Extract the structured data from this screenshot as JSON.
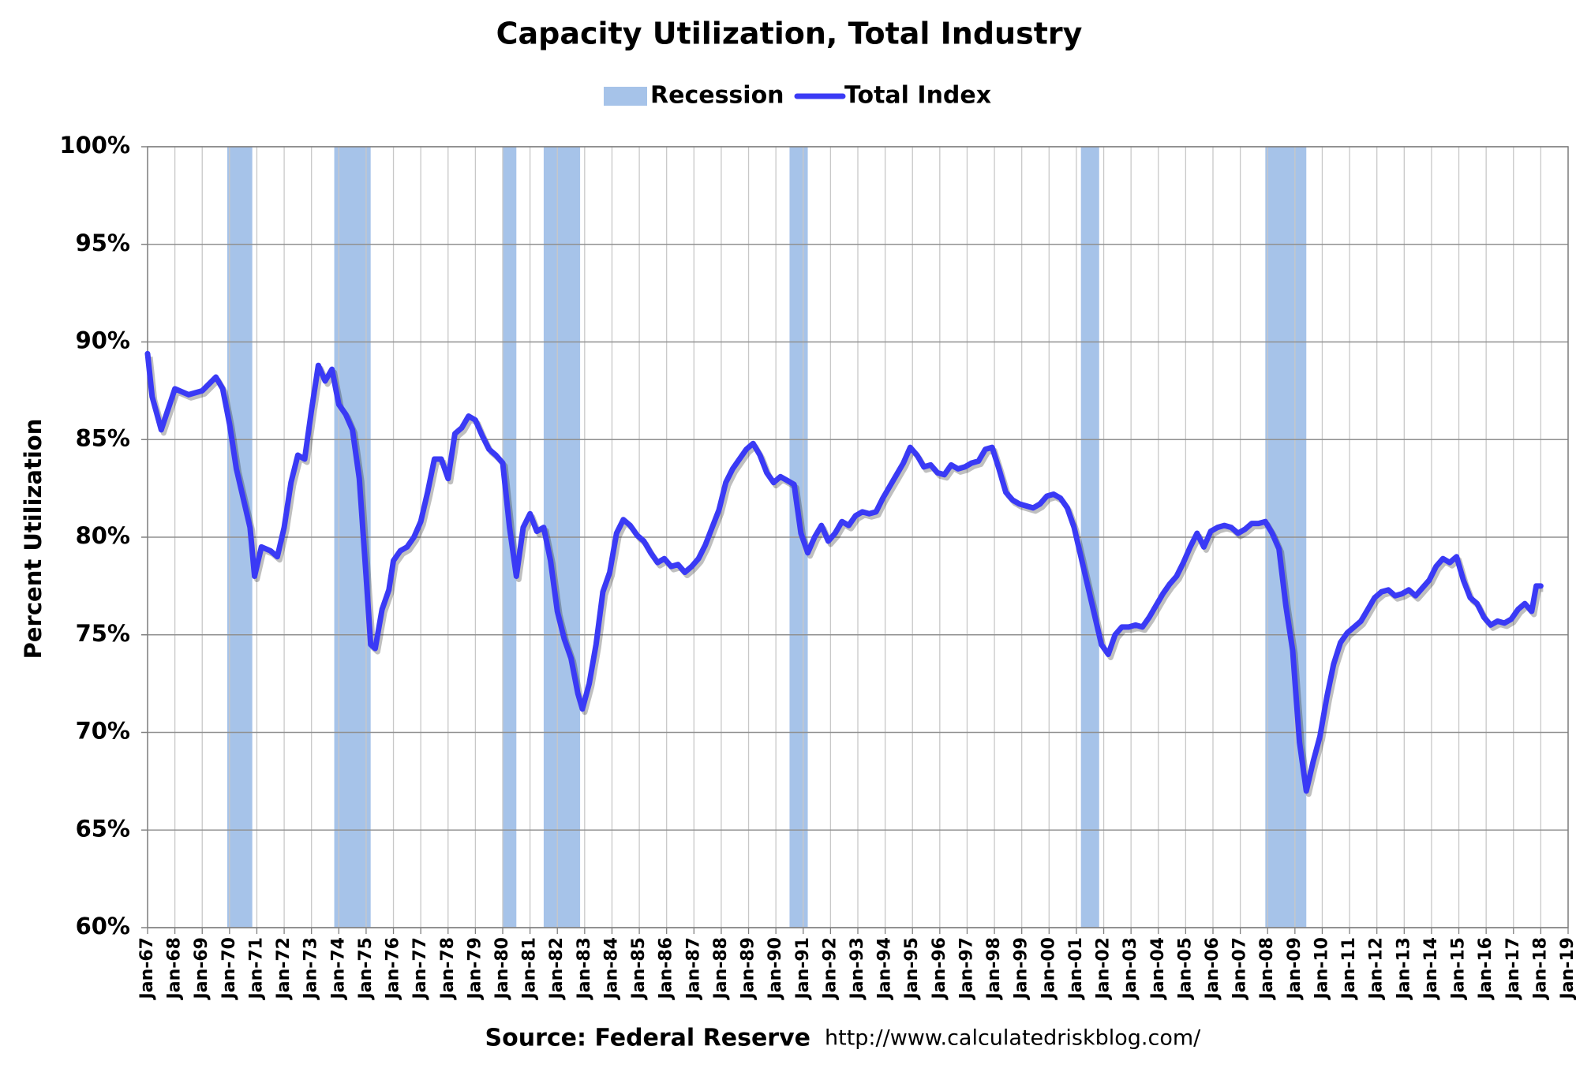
{
  "chart_data": {
    "type": "line",
    "title": "Capacity Utilization, Total Industry",
    "ylabel": "Percent Utilization",
    "source": "Source: Federal Reserve",
    "url": "http://www.calculatedriskblog.com/",
    "legend": "top",
    "grid": true,
    "recession": {
      "name": "Recession",
      "color": "#a6c3e9",
      "periods": [
        [
          "Dec-69",
          "Nov-70"
        ],
        [
          "Nov-73",
          "Mar-75"
        ],
        [
          "Jan-80",
          "Jul-80"
        ],
        [
          "Jul-81",
          "Nov-82"
        ],
        [
          "Jul-90",
          "Mar-91"
        ],
        [
          "Mar-01",
          "Nov-01"
        ],
        [
          "Dec-07",
          "Jun-09"
        ]
      ]
    },
    "xlim": [
      "Jan-67",
      "Jan-19"
    ],
    "xticks": [
      "Jan-67",
      "Jan-68",
      "Jan-69",
      "Jan-70",
      "Jan-71",
      "Jan-72",
      "Jan-73",
      "Jan-74",
      "Jan-75",
      "Jan-76",
      "Jan-77",
      "Jan-78",
      "Jan-79",
      "Jan-80",
      "Jan-81",
      "Jan-82",
      "Jan-83",
      "Jan-84",
      "Jan-85",
      "Jan-86",
      "Jan-87",
      "Jan-88",
      "Jan-89",
      "Jan-90",
      "Jan-91",
      "Jan-92",
      "Jan-93",
      "Jan-94",
      "Jan-95",
      "Jan-96",
      "Jan-97",
      "Jan-98",
      "Jan-99",
      "Jan-00",
      "Jan-01",
      "Jan-02",
      "Jan-03",
      "Jan-04",
      "Jan-05",
      "Jan-06",
      "Jan-07",
      "Jan-08",
      "Jan-09",
      "Jan-10",
      "Jan-11",
      "Jan-12",
      "Jan-13",
      "Jan-14",
      "Jan-15",
      "Jan-16",
      "Jan-17",
      "Jan-18",
      "Jan-19"
    ],
    "ylim": [
      60,
      100
    ],
    "yticks": [
      {
        "value": 60,
        "label": "60%"
      },
      {
        "value": 65,
        "label": "65%"
      },
      {
        "value": 70,
        "label": "70%"
      },
      {
        "value": 75,
        "label": "75%"
      },
      {
        "value": 80,
        "label": "80%"
      },
      {
        "value": 85,
        "label": "85%"
      },
      {
        "value": 90,
        "label": "90%"
      },
      {
        "value": 95,
        "label": "95%"
      },
      {
        "value": 100,
        "label": "100%"
      }
    ],
    "x": [
      "Jan-67",
      "Mar-67",
      "Jul-67",
      "Jan-68",
      "Jul-68",
      "Jan-69",
      "Jul-69",
      "Oct-69",
      "Jan-70",
      "Apr-70",
      "Jul-70",
      "Oct-70",
      "Dec-70",
      "Mar-71",
      "Jul-71",
      "Oct-71",
      "Jan-72",
      "Apr-72",
      "Jul-72",
      "Oct-72",
      "Jan-73",
      "Apr-73",
      "Jul-73",
      "Oct-73",
      "Jan-74",
      "Apr-74",
      "Jul-74",
      "Oct-74",
      "Jan-75",
      "Mar-75",
      "May-75",
      "Aug-75",
      "Nov-75",
      "Jan-76",
      "Apr-76",
      "Jul-76",
      "Oct-76",
      "Jan-77",
      "Apr-77",
      "Jul-77",
      "Oct-77",
      "Jan-78",
      "Apr-78",
      "Jul-78",
      "Oct-78",
      "Jan-79",
      "Apr-79",
      "Jul-79",
      "Oct-79",
      "Jan-80",
      "Apr-80",
      "Jul-80",
      "Oct-80",
      "Jan-81",
      "Apr-81",
      "Jul-81",
      "Oct-81",
      "Jan-82",
      "Apr-82",
      "Jul-82",
      "Oct-82",
      "Dec-82",
      "Mar-83",
      "Jun-83",
      "Sep-83",
      "Dec-83",
      "Mar-84",
      "Jun-84",
      "Sep-84",
      "Dec-84",
      "Mar-85",
      "Jun-85",
      "Sep-85",
      "Dec-85",
      "Mar-86",
      "Jun-86",
      "Sep-86",
      "Dec-86",
      "Mar-87",
      "Jun-87",
      "Sep-87",
      "Dec-87",
      "Mar-88",
      "Jun-88",
      "Sep-88",
      "Dec-88",
      "Mar-89",
      "Jun-89",
      "Sep-89",
      "Dec-89",
      "Mar-90",
      "Jun-90",
      "Sep-90",
      "Dec-90",
      "Mar-91",
      "Jun-91",
      "Sep-91",
      "Dec-91",
      "Mar-92",
      "Jun-92",
      "Sep-92",
      "Dec-92",
      "Mar-93",
      "Jun-93",
      "Sep-93",
      "Dec-93",
      "Mar-94",
      "Jun-94",
      "Sep-94",
      "Dec-94",
      "Mar-95",
      "Jun-95",
      "Sep-95",
      "Dec-95",
      "Mar-96",
      "Jun-96",
      "Sep-96",
      "Dec-96",
      "Mar-97",
      "Jun-97",
      "Sep-97",
      "Dec-97",
      "Mar-98",
      "Jun-98",
      "Sep-98",
      "Dec-98",
      "Mar-99",
      "Jun-99",
      "Sep-99",
      "Dec-99",
      "Mar-00",
      "Jun-00",
      "Sep-00",
      "Dec-00",
      "Mar-01",
      "Jun-01",
      "Sep-01",
      "Dec-01",
      "Mar-02",
      "Jun-02",
      "Sep-02",
      "Dec-02",
      "Mar-03",
      "Jun-03",
      "Sep-03",
      "Dec-03",
      "Mar-04",
      "Jun-04",
      "Sep-04",
      "Dec-04",
      "Mar-05",
      "Jun-05",
      "Sep-05",
      "Dec-05",
      "Mar-06",
      "Jun-06",
      "Sep-06",
      "Dec-06",
      "Mar-07",
      "Jun-07",
      "Sep-07",
      "Dec-07",
      "Mar-08",
      "Jun-08",
      "Sep-08",
      "Dec-08",
      "Mar-09",
      "Jun-09",
      "Sep-09",
      "Dec-09",
      "Mar-10",
      "Jun-10",
      "Sep-10",
      "Dec-10",
      "Mar-11",
      "Jun-11",
      "Sep-11",
      "Dec-11",
      "Mar-12",
      "Jun-12",
      "Sep-12",
      "Dec-12",
      "Mar-13",
      "Jun-13",
      "Sep-13",
      "Dec-13",
      "Mar-14",
      "Jun-14",
      "Sep-14",
      "Dec-14",
      "Mar-15",
      "Jun-15",
      "Sep-15",
      "Dec-15",
      "Mar-16",
      "Jun-16",
      "Sep-16",
      "Dec-16",
      "Mar-17",
      "Jun-17",
      "Sep-17",
      "Nov-17",
      "Jan-18"
    ],
    "series": [
      {
        "name": "Total Index",
        "color": "#3a3af5",
        "values": [
          89.4,
          87.2,
          85.5,
          87.6,
          87.3,
          87.5,
          88.2,
          87.6,
          85.8,
          83.5,
          82,
          80.5,
          78,
          79.5,
          79.3,
          79,
          80.5,
          82.8,
          84.2,
          84,
          86.5,
          88.8,
          88,
          88.6,
          86.8,
          86.3,
          85.5,
          83,
          78,
          74.5,
          74.3,
          76.3,
          77.3,
          78.8,
          79.3,
          79.5,
          80,
          80.8,
          82.3,
          84,
          84,
          83,
          85.3,
          85.6,
          86.2,
          86,
          85.2,
          84.5,
          84.2,
          83.8,
          80.5,
          78,
          80.5,
          81.2,
          80.3,
          80.5,
          78.8,
          76.2,
          74.8,
          73.8,
          72,
          71.2,
          72.5,
          74.5,
          77.2,
          78.2,
          80.2,
          80.9,
          80.6,
          80.1,
          79.8,
          79.2,
          78.7,
          78.9,
          78.5,
          78.6,
          78.2,
          78.5,
          78.9,
          79.6,
          80.5,
          81.4,
          82.8,
          83.5,
          84,
          84.5,
          84.8,
          84.2,
          83.3,
          82.8,
          83.1,
          82.9,
          82.7,
          80.2,
          79.2,
          80,
          80.6,
          79.8,
          80.2,
          80.8,
          80.6,
          81.1,
          81.3,
          81.2,
          81.3,
          82,
          82.6,
          83.2,
          83.8,
          84.6,
          84.2,
          83.6,
          83.7,
          83.3,
          83.2,
          83.7,
          83.5,
          83.6,
          83.8,
          83.9,
          84.5,
          84.6,
          83.5,
          82.3,
          81.9,
          81.7,
          81.6,
          81.5,
          81.7,
          82.1,
          82.2,
          82,
          81.5,
          80.5,
          79,
          77.5,
          76,
          74.5,
          74,
          75,
          75.4,
          75.4,
          75.5,
          75.4,
          75.9,
          76.5,
          77.1,
          77.6,
          78,
          78.7,
          79.5,
          80.2,
          79.5,
          80.3,
          80.5,
          80.6,
          80.5,
          80.2,
          80.4,
          80.7,
          80.7,
          80.8,
          80.2,
          79.4,
          76.5,
          74.2,
          69.5,
          67,
          68.5,
          69.8,
          71.8,
          73.5,
          74.6,
          75.1,
          75.4,
          75.7,
          76.3,
          76.9,
          77.2,
          77.3,
          77,
          77.1,
          77.3,
          77,
          77.4,
          77.8,
          78.5,
          78.9,
          78.7,
          79,
          77.8,
          76.9,
          76.6,
          75.9,
          75.5,
          75.7,
          75.6,
          75.8,
          76.3,
          76.6,
          76.2,
          77.5,
          77.5
        ]
      }
    ]
  }
}
